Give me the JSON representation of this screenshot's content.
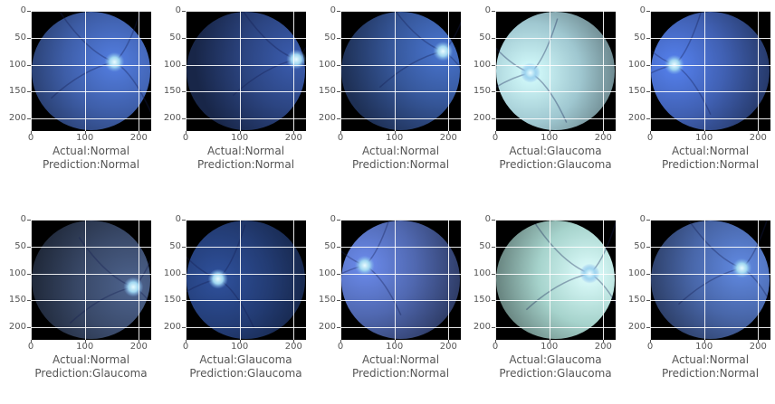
{
  "axes": {
    "x_ticks": [
      "0",
      "100",
      "200"
    ],
    "y_ticks": [
      "0",
      "50",
      "100",
      "150",
      "200"
    ],
    "xlim": [
      0,
      223
    ],
    "ylim": [
      223,
      0
    ]
  },
  "label_prefix": {
    "actual": "Actual:",
    "prediction": "Prediction:"
  },
  "panels": [
    {
      "actual": "Normal",
      "prediction": "Normal",
      "fundus_tint": "#3e5ea8",
      "disc_x": 155,
      "disc_y": 95
    },
    {
      "actual": "Normal",
      "prediction": "Normal",
      "fundus_tint": "#2c4582",
      "disc_x": 205,
      "disc_y": 90
    },
    {
      "actual": "Normal",
      "prediction": "Normal",
      "fundus_tint": "#36579a",
      "disc_x": 190,
      "disc_y": 75
    },
    {
      "actual": "Glaucoma",
      "prediction": "Glaucoma",
      "fundus_tint": "#9fc7d0",
      "disc_x": 65,
      "disc_y": 115
    },
    {
      "actual": "Normal",
      "prediction": "Normal",
      "fundus_tint": "#4060b2",
      "disc_x": 45,
      "disc_y": 100
    },
    {
      "actual": "Normal",
      "prediction": "Glaucoma",
      "fundus_tint": "#3a4a6a",
      "disc_x": 190,
      "disc_y": 125
    },
    {
      "actual": "Glaucoma",
      "prediction": "Glaucoma",
      "fundus_tint": "#233c74",
      "disc_x": 60,
      "disc_y": 110
    },
    {
      "actual": "Normal",
      "prediction": "Normal",
      "fundus_tint": "#5068b0",
      "disc_x": 45,
      "disc_y": 85
    },
    {
      "actual": "Glaucoma",
      "prediction": "Glaucoma",
      "fundus_tint": "#a6d3cc",
      "disc_x": 175,
      "disc_y": 100
    },
    {
      "actual": "Normal",
      "prediction": "Normal",
      "fundus_tint": "#4866a8",
      "disc_x": 170,
      "disc_y": 90
    }
  ]
}
